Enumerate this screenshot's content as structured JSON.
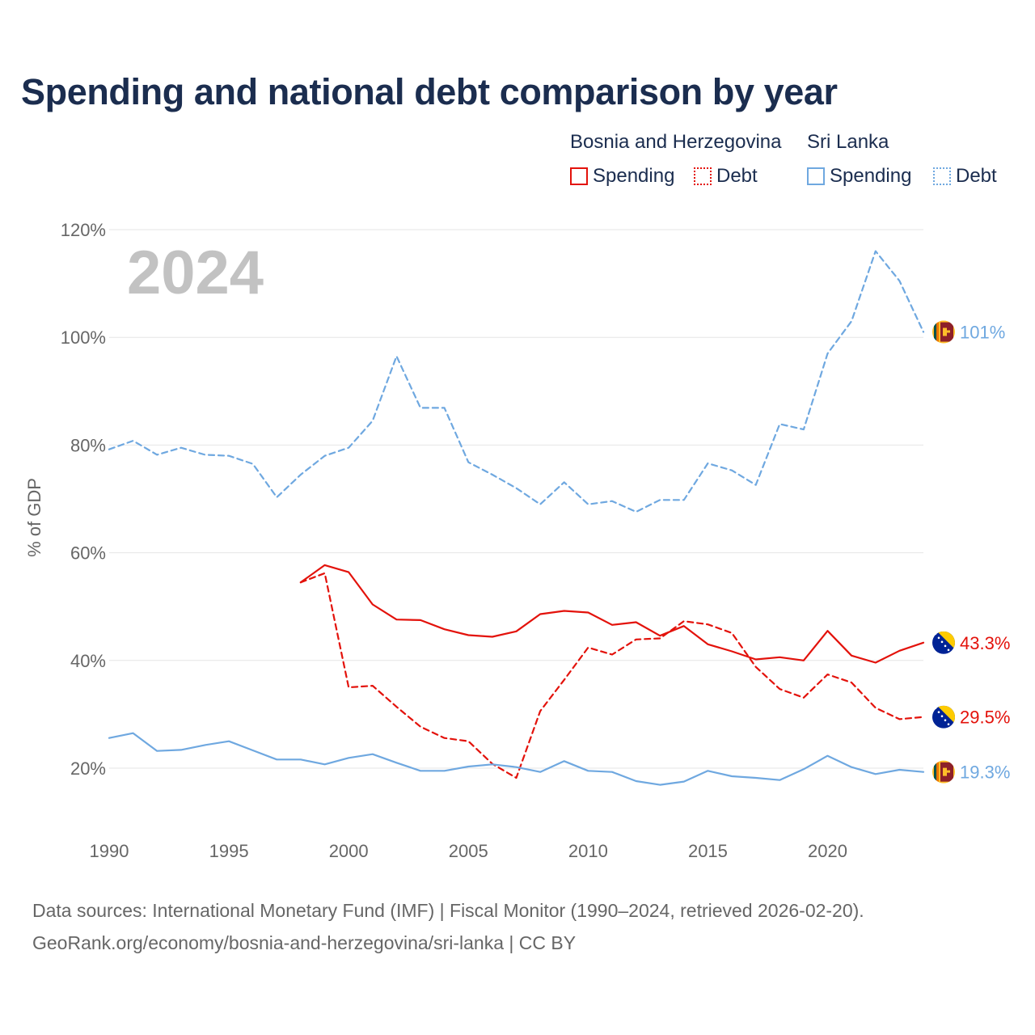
{
  "header": {
    "title": "Spending and national debt comparison by year"
  },
  "legend": {
    "groups": [
      {
        "name": "Bosnia and Herzegovina",
        "color": "#e3120b",
        "items": [
          {
            "label": "Spending",
            "style": "solid"
          },
          {
            "label": "Debt",
            "style": "dotted"
          }
        ]
      },
      {
        "name": "Sri Lanka",
        "color": "#6fa8e0",
        "items": [
          {
            "label": "Spending",
            "style": "solid"
          },
          {
            "label": "Debt",
            "style": "dotted"
          }
        ]
      }
    ]
  },
  "chart_data": {
    "type": "line",
    "title": "Spending and national debt comparison by year",
    "ylabel": "% of GDP",
    "xlabel": "",
    "year_label": "2024",
    "ylim": [
      10,
      125
    ],
    "xlim": [
      1990,
      2024
    ],
    "y_ticks": [
      20,
      40,
      60,
      80,
      100,
      120
    ],
    "y_tick_labels": [
      "20%",
      "40%",
      "60%",
      "80%",
      "100%",
      "120%"
    ],
    "x_ticks": [
      1990,
      1995,
      2000,
      2005,
      2010,
      2015,
      2020
    ],
    "x_tick_labels": [
      "1990",
      "1995",
      "2000",
      "2005",
      "2010",
      "2015",
      "2020"
    ],
    "series": [
      {
        "name": "Sri Lanka Debt",
        "country": "Sri Lanka",
        "metric": "Debt",
        "color": "#6fa8e0",
        "dash": true,
        "x": [
          1990,
          1991,
          1992,
          1993,
          1994,
          1995,
          1996,
          1997,
          1998,
          1999,
          2000,
          2001,
          2002,
          2003,
          2004,
          2005,
          2006,
          2007,
          2008,
          2009,
          2010,
          2011,
          2012,
          2013,
          2014,
          2015,
          2016,
          2017,
          2018,
          2019,
          2020,
          2021,
          2022,
          2023,
          2024
        ],
        "values": [
          79.2,
          80.8,
          78.2,
          79.5,
          78.2,
          78.0,
          76.5,
          70.3,
          74.5,
          78.0,
          79.5,
          84.5,
          96.5,
          86.9,
          86.9,
          76.8,
          74.5,
          72.0,
          69.0,
          73.1,
          69.0,
          69.6,
          67.6,
          69.8,
          69.8,
          76.6,
          75.3,
          72.6,
          83.9,
          82.9,
          97.0,
          103.0,
          116.0,
          110.5,
          101.0
        ],
        "end_label": "101%"
      },
      {
        "name": "Bosnia and Herzegovina Spending",
        "country": "Bosnia and Herzegovina",
        "metric": "Spending",
        "color": "#e3120b",
        "dash": false,
        "x": [
          1998,
          1999,
          2000,
          2001,
          2002,
          2003,
          2004,
          2005,
          2006,
          2007,
          2008,
          2009,
          2010,
          2011,
          2012,
          2013,
          2014,
          2015,
          2016,
          2017,
          2018,
          2019,
          2020,
          2021,
          2022,
          2023,
          2024
        ],
        "values": [
          54.5,
          57.7,
          56.4,
          50.4,
          47.6,
          47.5,
          45.8,
          44.7,
          44.4,
          45.4,
          48.6,
          49.2,
          48.9,
          46.6,
          47.1,
          44.6,
          46.4,
          43.0,
          41.7,
          40.2,
          40.6,
          40.0,
          45.5,
          40.9,
          39.6,
          41.8,
          43.3
        ],
        "end_label": "43.3%"
      },
      {
        "name": "Bosnia and Herzegovina Debt",
        "country": "Bosnia and Herzegovina",
        "metric": "Debt",
        "color": "#e3120b",
        "dash": true,
        "x": [
          1998,
          1999,
          2000,
          2001,
          2002,
          2003,
          2004,
          2005,
          2006,
          2007,
          2008,
          2009,
          2010,
          2011,
          2012,
          2013,
          2014,
          2015,
          2016,
          2017,
          2018,
          2019,
          2020,
          2021,
          2022,
          2023,
          2024
        ],
        "values": [
          54.5,
          56.2,
          35.0,
          35.3,
          31.4,
          27.7,
          25.6,
          25.0,
          20.8,
          18.2,
          30.6,
          36.4,
          42.4,
          41.1,
          43.9,
          44.1,
          47.3,
          46.7,
          45.1,
          38.8,
          34.7,
          33.1,
          37.4,
          35.9,
          31.2,
          29.1,
          29.5
        ],
        "end_label": "29.5%"
      },
      {
        "name": "Sri Lanka Spending",
        "country": "Sri Lanka",
        "metric": "Spending",
        "color": "#6fa8e0",
        "dash": false,
        "x": [
          1990,
          1991,
          1992,
          1993,
          1994,
          1995,
          1996,
          1997,
          1998,
          1999,
          2000,
          2001,
          2002,
          2003,
          2004,
          2005,
          2006,
          2007,
          2008,
          2009,
          2010,
          2011,
          2012,
          2013,
          2014,
          2015,
          2016,
          2017,
          2018,
          2019,
          2020,
          2021,
          2022,
          2023,
          2024
        ],
        "values": [
          25.6,
          26.5,
          23.2,
          23.4,
          24.3,
          25.0,
          23.3,
          21.6,
          21.6,
          20.7,
          21.9,
          22.6,
          21.0,
          19.5,
          19.5,
          20.3,
          20.7,
          20.2,
          19.3,
          21.3,
          19.5,
          19.3,
          17.6,
          16.9,
          17.5,
          19.5,
          18.5,
          18.2,
          17.8,
          19.8,
          22.3,
          20.2,
          18.9,
          19.7,
          19.3
        ],
        "end_label": "19.3%"
      }
    ]
  },
  "footer": {
    "line1": "Data sources: International Monetary Fund (IMF) | Fiscal Monitor (1990–2024, retrieved 2026-02-20).",
    "line2": "GeoRank.org/economy/bosnia-and-herzegovina/sri-lanka | CC BY"
  }
}
